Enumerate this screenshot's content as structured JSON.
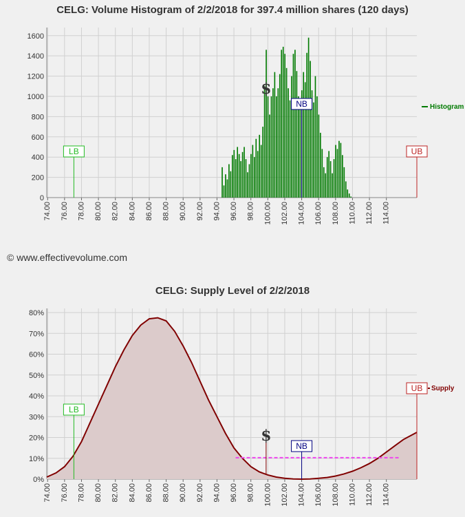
{
  "copyright": "© www.effectivevolume.com",
  "colors": {
    "histogram": "#007a00",
    "supply": "#800000",
    "supply_fill": "#dccbcb",
    "lb": "#22bb22",
    "ub": "#bb2222",
    "nb": "#000080",
    "dashed": "#ee44ee",
    "grid": "#d0d0d0"
  },
  "chart_data": [
    {
      "type": "bar",
      "title": "CELG: Volume Histogram of 2/2/2018 for 397.4 million shares (120 days)",
      "x_ticks": [
        "74.00",
        "76.00",
        "78.00",
        "80.00",
        "82.00",
        "84.00",
        "86.00",
        "88.00",
        "90.00",
        "92.00",
        "94.00",
        "96.00",
        "98.00",
        "100.00",
        "102.00",
        "104.00",
        "106.00",
        "108.00",
        "110.00",
        "112.00",
        "114.00"
      ],
      "y_ticks": [
        "0",
        "200",
        "400",
        "600",
        "800",
        "1000",
        "1200",
        "1400",
        "1600"
      ],
      "xlim": [
        73.9,
        117.6
      ],
      "ylim": [
        0,
        1680
      ],
      "legend": "Histogram",
      "markers": {
        "LB": 77.1,
        "UB": 117.6,
        "NB": 104.0,
        "price": 99.8
      },
      "series": [
        {
          "name": "Histogram",
          "points": [
            [
              94.5,
              0
            ],
            [
              94.6,
              300
            ],
            [
              94.8,
              120
            ],
            [
              95.0,
              230
            ],
            [
              95.2,
              180
            ],
            [
              95.4,
              330
            ],
            [
              95.6,
              260
            ],
            [
              95.8,
              420
            ],
            [
              96.0,
              470
            ],
            [
              96.2,
              380
            ],
            [
              96.4,
              500
            ],
            [
              96.6,
              430
            ],
            [
              96.8,
              360
            ],
            [
              97.0,
              450
            ],
            [
              97.2,
              500
            ],
            [
              97.4,
              380
            ],
            [
              97.6,
              250
            ],
            [
              97.8,
              330
            ],
            [
              98.0,
              430
            ],
            [
              98.2,
              520
            ],
            [
              98.4,
              400
            ],
            [
              98.6,
              580
            ],
            [
              98.8,
              460
            ],
            [
              99.0,
              620
            ],
            [
              99.2,
              520
            ],
            [
              99.4,
              700
            ],
            [
              99.6,
              1100
            ],
            [
              99.8,
              1460
            ],
            [
              100.0,
              1000
            ],
            [
              100.2,
              820
            ],
            [
              100.4,
              1000
            ],
            [
              100.6,
              1080
            ],
            [
              100.8,
              1240
            ],
            [
              101.0,
              1000
            ],
            [
              101.2,
              1080
            ],
            [
              101.4,
              1220
            ],
            [
              101.6,
              1460
            ],
            [
              101.8,
              1490
            ],
            [
              102.0,
              1420
            ],
            [
              102.2,
              1280
            ],
            [
              102.4,
              1080
            ],
            [
              102.6,
              960
            ],
            [
              102.8,
              1200
            ],
            [
              103.0,
              1420
            ],
            [
              103.2,
              1460
            ],
            [
              103.4,
              1250
            ],
            [
              103.6,
              1000
            ],
            [
              103.8,
              880
            ],
            [
              104.0,
              1060
            ],
            [
              104.2,
              1240
            ],
            [
              104.4,
              1140
            ],
            [
              104.6,
              1430
            ],
            [
              104.8,
              1580
            ],
            [
              105.0,
              1350
            ],
            [
              105.2,
              1060
            ],
            [
              105.4,
              940
            ],
            [
              105.6,
              1200
            ],
            [
              105.8,
              1000
            ],
            [
              106.0,
              820
            ],
            [
              106.2,
              640
            ],
            [
              106.4,
              480
            ],
            [
              106.6,
              300
            ],
            [
              106.8,
              240
            ],
            [
              107.0,
              400
            ],
            [
              107.2,
              460
            ],
            [
              107.4,
              360
            ],
            [
              107.6,
              240
            ],
            [
              107.8,
              380
            ],
            [
              108.0,
              520
            ],
            [
              108.2,
              480
            ],
            [
              108.4,
              560
            ],
            [
              108.6,
              540
            ],
            [
              108.8,
              420
            ],
            [
              109.0,
              300
            ],
            [
              109.2,
              160
            ],
            [
              109.4,
              80
            ],
            [
              109.6,
              40
            ],
            [
              109.8,
              10
            ],
            [
              110.0,
              0
            ]
          ]
        }
      ]
    },
    {
      "type": "area",
      "title": "CELG: Supply Level of 2/2/2018",
      "x_ticks": [
        "74.00",
        "76.00",
        "78.00",
        "80.00",
        "82.00",
        "84.00",
        "86.00",
        "88.00",
        "90.00",
        "92.00",
        "94.00",
        "96.00",
        "98.00",
        "100.00",
        "102.00",
        "104.00",
        "106.00",
        "108.00",
        "110.00",
        "112.00",
        "114.00"
      ],
      "y_ticks": [
        "0%",
        "10%",
        "20%",
        "30%",
        "40%",
        "50%",
        "60%",
        "70%",
        "80%"
      ],
      "xlim": [
        73.9,
        117.6
      ],
      "ylim": [
        0,
        82
      ],
      "legend": "Supply",
      "markers": {
        "LB": 77.1,
        "UB": 117.6,
        "NB": 104.0,
        "price": 99.8
      },
      "dashed_level": {
        "value": 10.3,
        "x_start": 96.2,
        "x_end": 115.5
      },
      "series": [
        {
          "name": "Supply",
          "points": [
            [
              73.9,
              1.0
            ],
            [
              75.0,
              3.0
            ],
            [
              76.0,
              6.0
            ],
            [
              77.0,
              11.0
            ],
            [
              78.0,
              18.0
            ],
            [
              79.0,
              27.0
            ],
            [
              80.0,
              36.0
            ],
            [
              81.0,
              45.0
            ],
            [
              82.0,
              54.0
            ],
            [
              83.0,
              62.0
            ],
            [
              84.0,
              69.0
            ],
            [
              85.0,
              74.0
            ],
            [
              86.0,
              77.0
            ],
            [
              87.0,
              77.5
            ],
            [
              88.0,
              76.0
            ],
            [
              89.0,
              71.0
            ],
            [
              90.0,
              64.0
            ],
            [
              91.0,
              56.0
            ],
            [
              92.0,
              47.0
            ],
            [
              93.0,
              38.0
            ],
            [
              94.0,
              30.0
            ],
            [
              95.0,
              22.0
            ],
            [
              96.0,
              15.0
            ],
            [
              97.0,
              10.0
            ],
            [
              98.0,
              6.0
            ],
            [
              99.0,
              3.5
            ],
            [
              100.0,
              2.0
            ],
            [
              101.0,
              1.0
            ],
            [
              102.0,
              0.4
            ],
            [
              103.0,
              0.1
            ],
            [
              104.0,
              0.0
            ],
            [
              105.0,
              0.1
            ],
            [
              106.0,
              0.4
            ],
            [
              107.0,
              0.8
            ],
            [
              108.0,
              1.5
            ],
            [
              109.0,
              2.5
            ],
            [
              110.0,
              3.8
            ],
            [
              111.0,
              5.5
            ],
            [
              112.0,
              7.5
            ],
            [
              113.0,
              10.0
            ],
            [
              114.0,
              13.0
            ],
            [
              115.0,
              16.0
            ],
            [
              116.0,
              19.0
            ],
            [
              117.6,
              22.5
            ]
          ]
        }
      ]
    }
  ]
}
